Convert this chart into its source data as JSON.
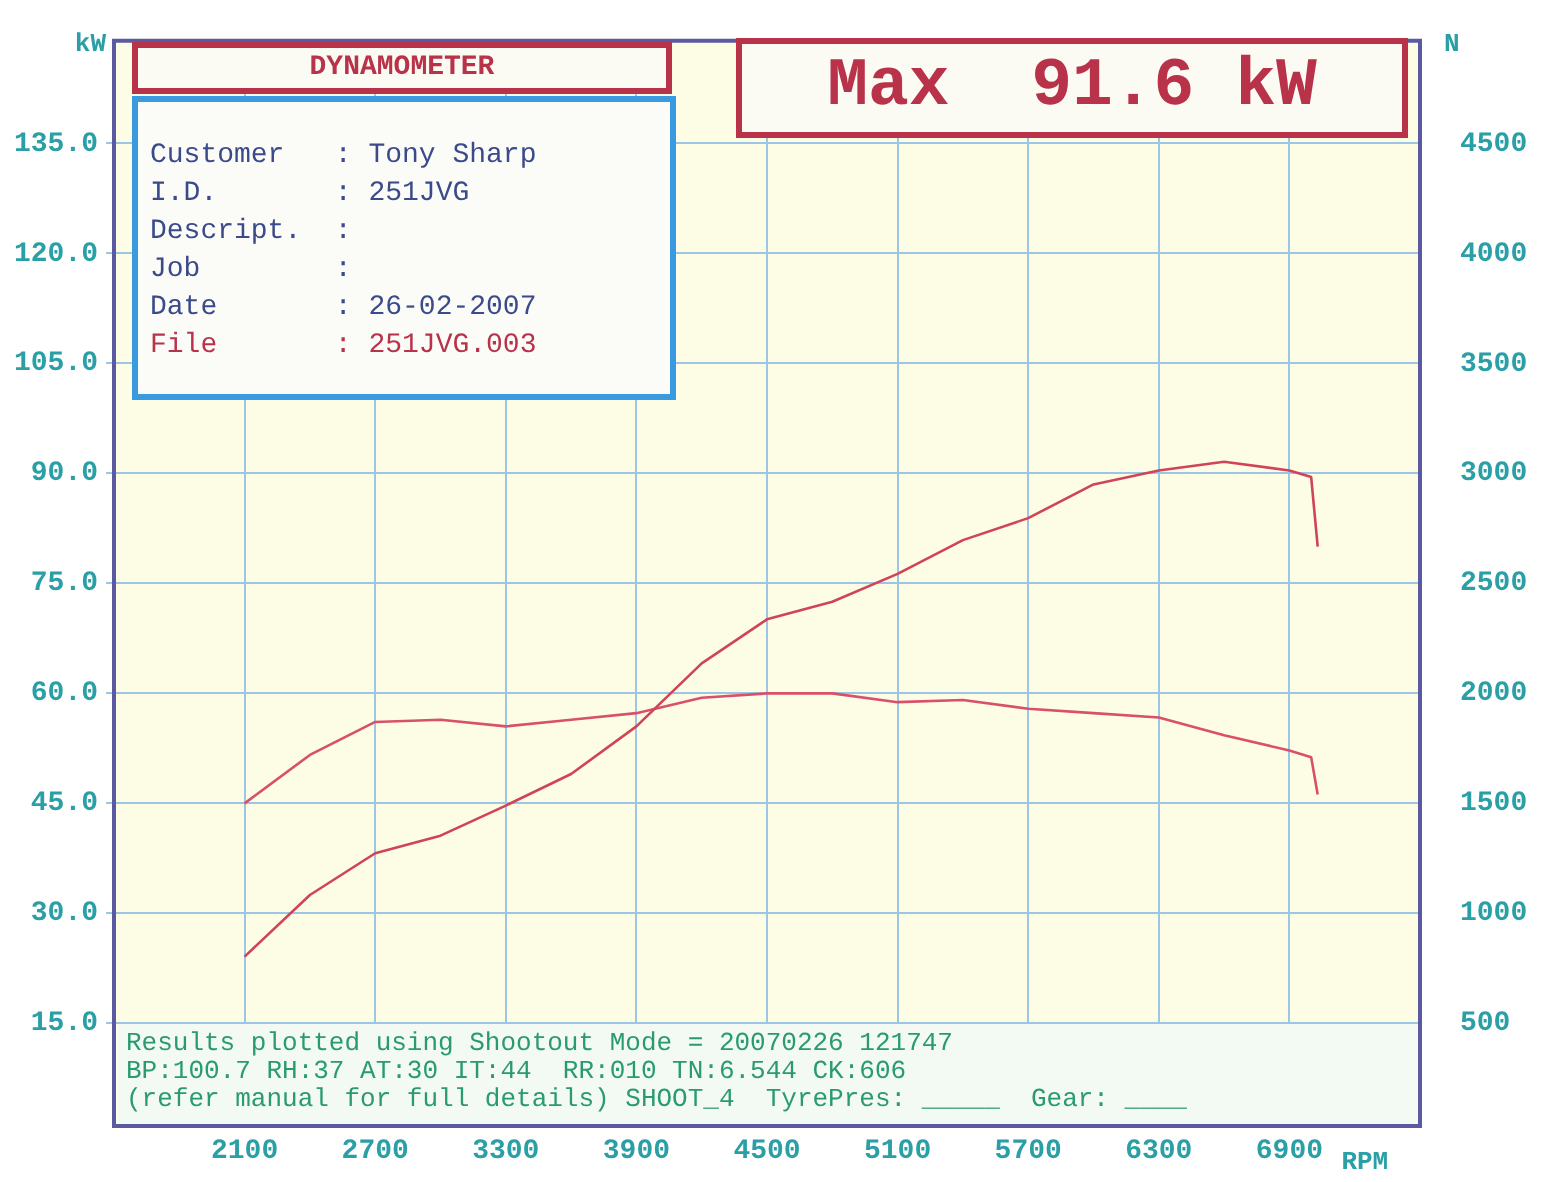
{
  "chart_data": {
    "type": "line",
    "title": "DYNAMOMETER",
    "xlabel": "RPM",
    "ylabel": "kW",
    "y2label": "N",
    "x": [
      2100,
      2400,
      2700,
      3000,
      3300,
      3600,
      3900,
      4200,
      4500,
      4800,
      5100,
      5400,
      5700,
      6000,
      6300,
      6600,
      6900,
      7000,
      7030
    ],
    "series": [
      {
        "color": "#d04458",
        "axis": "y",
        "values": [
          24.1,
          32.5,
          38.2,
          40.6,
          44.7,
          49.0,
          55.5,
          64.1,
          70.1,
          72.5,
          76.3,
          80.9,
          83.9,
          88.5,
          90.4,
          91.6,
          90.4,
          89.5,
          80.0
        ]
      },
      {
        "color": "#d8506a",
        "axis": "y2",
        "values": [
          1500,
          1720,
          1870,
          1880,
          1850,
          1880,
          1910,
          1980,
          2000,
          2000,
          1960,
          1970,
          1930,
          1910,
          1890,
          1810,
          1740,
          1710,
          1540
        ]
      }
    ],
    "xlim": [
      1500,
      7500
    ],
    "xticks": [
      2100,
      2700,
      3300,
      3900,
      4500,
      5100,
      5700,
      6300,
      6900
    ],
    "ylim": [
      1,
      149
    ],
    "yticks": [
      {
        "value": 15,
        "label": "15.0"
      },
      {
        "value": 30,
        "label": "30.0"
      },
      {
        "value": 45,
        "label": "45.0"
      },
      {
        "value": 60,
        "label": "60.0"
      },
      {
        "value": 75,
        "label": "75.0"
      },
      {
        "value": 90,
        "label": "90.0"
      },
      {
        "value": 105,
        "label": "105.0"
      },
      {
        "value": 120,
        "label": "120.0"
      },
      {
        "value": 135,
        "label": "135.0"
      }
    ],
    "y2lim": [
      33,
      4967
    ],
    "y2ticks": [
      500,
      1000,
      1500,
      2000,
      2500,
      3000,
      3500,
      4000,
      4500
    ],
    "grid": true,
    "marker": "none",
    "legend": false,
    "annotations": [
      "Customer   : Tony Sharp",
      "I.D.       : 251JVG",
      "Descript.  :",
      "Job        :",
      "Date       : 26-02-2007",
      "File       : 251JVG.003",
      "Max  91.6 kW",
      "Results plotted using Shootout Mode = 20070226 121747",
      "BP:100.7 RH:37 AT:30 IT:44  RR:010 TN:6.544 CK:606",
      "(refer manual for full details) SHOOT_4  TyrePres: _____  Gear: ____"
    ]
  }
}
